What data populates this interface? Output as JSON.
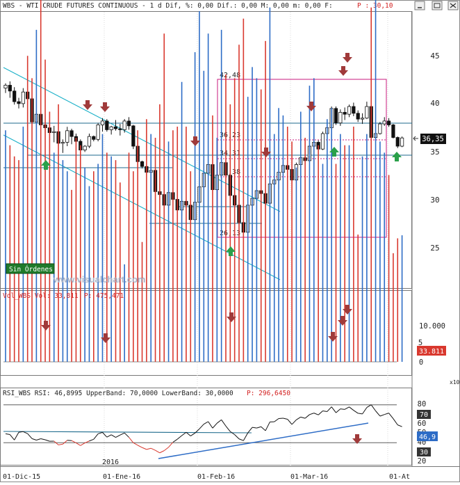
{
  "header": {
    "title_left": "WBS - WTI CRUDE FUTURES CONTINUOUS - 1 d Dif, %: 0,00 Dif.: 0,00 M: 0,00 m: 0,00 F:",
    "title_p": "P : 30,10"
  },
  "watermark": "www.visualchart.com",
  "badge_text": "Sin Órdenes",
  "price_panel": {
    "y_ticks": [
      "45",
      "40",
      "35",
      "30",
      "25"
    ],
    "last_price_label": "36,35",
    "fib_labels": [
      "42,48",
      "36,23",
      "34,31",
      "32,38",
      "26,13"
    ]
  },
  "volume_panel": {
    "title_left": "Vol_WBS Vol: 33,811",
    "title_p": "P: 475,471",
    "y_ticks": [
      "10.000",
      "5",
      "0"
    ],
    "last_label": "33.811",
    "scale_note": "x10"
  },
  "rsi_panel": {
    "title_left": "RSI_WBS RSI: 46,8995 UpperBand: 70,0000 LowerBand: 30,0000",
    "title_p": "P: 296,6450",
    "y_ticks": [
      "80",
      "60",
      "50",
      "40",
      "20"
    ],
    "upper_label": "70",
    "lower_label": "30",
    "rsi_label": "46,9"
  },
  "x_axis": {
    "labels": [
      "01-Dic-15",
      "01-Ene-16",
      "01-Feb-16",
      "01-Mar-16",
      "01-At"
    ],
    "year_label": "2016"
  },
  "colors": {
    "up": "#2d6cc6",
    "down": "#d9382e",
    "trend": "#1ab0c8",
    "hline": "#1c6a8c",
    "fib": "#c8197c",
    "arrow_down": "#a03a3a",
    "arrow_up": "#2aa04a",
    "badge_bg": "#1f7a2a"
  },
  "chart_data": [
    {
      "type": "candlestick",
      "series_name": "WBS",
      "x": [
        "2015-11-24",
        "2015-11-25",
        "2015-11-26",
        "2015-11-27",
        "2015-11-30",
        "2015-12-01",
        "2015-12-02",
        "2015-12-03",
        "2015-12-04",
        "2015-12-07",
        "2015-12-08",
        "2015-12-09",
        "2015-12-10",
        "2015-12-11",
        "2015-12-14",
        "2015-12-15",
        "2015-12-16",
        "2015-12-17",
        "2015-12-18",
        "2015-12-21",
        "2015-12-22",
        "2015-12-23",
        "2015-12-24",
        "2015-12-28",
        "2015-12-29",
        "2015-12-30",
        "2015-12-31",
        "2016-01-04",
        "2016-01-05",
        "2016-01-06",
        "2016-01-07",
        "2016-01-08",
        "2016-01-11",
        "2016-01-12",
        "2016-01-13",
        "2016-01-14",
        "2016-01-15",
        "2016-01-19",
        "2016-01-20",
        "2016-01-21",
        "2016-01-22",
        "2016-01-25",
        "2016-01-26",
        "2016-01-27",
        "2016-01-28",
        "2016-01-29",
        "2016-02-01",
        "2016-02-02",
        "2016-02-03",
        "2016-02-04",
        "2016-02-05",
        "2016-02-08",
        "2016-02-09",
        "2016-02-10",
        "2016-02-11",
        "2016-02-12",
        "2016-02-16",
        "2016-02-17",
        "2016-02-18",
        "2016-02-19",
        "2016-02-22",
        "2016-02-23",
        "2016-02-24",
        "2016-02-25",
        "2016-02-26",
        "2016-02-29",
        "2016-03-01",
        "2016-03-02",
        "2016-03-03",
        "2016-03-04",
        "2016-03-07",
        "2016-03-08",
        "2016-03-09",
        "2016-03-10",
        "2016-03-11",
        "2016-03-14",
        "2016-03-15",
        "2016-03-16",
        "2016-03-17",
        "2016-03-18",
        "2016-03-21",
        "2016-03-22",
        "2016-03-23",
        "2016-03-24",
        "2016-03-28",
        "2016-03-29",
        "2016-03-30",
        "2016-03-31",
        "2016-04-01",
        "2016-04-04",
        "2016-04-05"
      ],
      "ohlc": [
        [
          41.5,
          42.0,
          41.0,
          41.8
        ],
        [
          41.8,
          42.2,
          40.5,
          41.2
        ],
        [
          41.2,
          41.6,
          39.8,
          40.1
        ],
        [
          40.1,
          40.5,
          39.4,
          39.9
        ],
        [
          39.9,
          41.5,
          39.5,
          41.1
        ],
        [
          41.1,
          41.6,
          40.2,
          40.4
        ],
        [
          40.4,
          40.6,
          37.8,
          38.0
        ],
        [
          38.0,
          39.2,
          37.5,
          38.8
        ],
        [
          38.8,
          39.3,
          37.4,
          37.7
        ],
        [
          37.7,
          38.0,
          36.8,
          37.4
        ],
        [
          37.4,
          38.2,
          36.7,
          36.9
        ],
        [
          36.9,
          37.6,
          35.9,
          37.0
        ],
        [
          37.0,
          37.2,
          35.6,
          35.8
        ],
        [
          35.8,
          36.2,
          34.8,
          35.9
        ],
        [
          35.9,
          37.5,
          35.5,
          37.1
        ],
        [
          37.1,
          37.3,
          35.7,
          36.5
        ],
        [
          36.5,
          36.8,
          35.8,
          36.0
        ],
        [
          36.0,
          36.2,
          34.8,
          35.1
        ],
        [
          35.1,
          35.6,
          34.9,
          35.5
        ],
        [
          35.5,
          36.8,
          35.3,
          36.5
        ],
        [
          36.5,
          36.6,
          36.0,
          36.2
        ],
        [
          36.2,
          37.9,
          36.0,
          37.7
        ],
        [
          37.7,
          38.4,
          37.0,
          38.1
        ],
        [
          38.1,
          38.3,
          37.0,
          37.2
        ],
        [
          37.2,
          37.6,
          36.7,
          37.5
        ],
        [
          37.5,
          38.2,
          37.1,
          37.3
        ],
        [
          37.3,
          37.8,
          36.6,
          37.2
        ],
        [
          37.2,
          38.3,
          36.9,
          38.1
        ],
        [
          38.1,
          38.5,
          37.2,
          37.6
        ],
        [
          37.6,
          37.7,
          35.2,
          35.5
        ],
        [
          35.5,
          35.6,
          33.6,
          33.9
        ],
        [
          33.9,
          34.0,
          33.2,
          33.4
        ],
        [
          33.4,
          33.7,
          32.5,
          32.8
        ],
        [
          32.8,
          33.1,
          32.5,
          33.0
        ],
        [
          33.0,
          33.3,
          30.5,
          30.8
        ],
        [
          30.8,
          31.6,
          30.3,
          30.5
        ],
        [
          30.5,
          31.0,
          29.3,
          29.4
        ],
        [
          29.4,
          30.9,
          29.1,
          30.7
        ],
        [
          30.7,
          31.2,
          29.7,
          30.0
        ],
        [
          30.0,
          30.2,
          28.6,
          28.9
        ],
        [
          28.9,
          30.0,
          28.3,
          29.8
        ],
        [
          29.8,
          30.0,
          28.9,
          29.4
        ],
        [
          29.4,
          29.6,
          27.6,
          27.9
        ],
        [
          27.9,
          30.0,
          27.5,
          29.7
        ],
        [
          29.7,
          31.5,
          29.6,
          31.3
        ],
        [
          31.3,
          33.0,
          31.2,
          32.7
        ],
        [
          32.7,
          33.7,
          32.4,
          33.6
        ],
        [
          33.6,
          33.8,
          30.5,
          31.0
        ],
        [
          31.0,
          34.2,
          30.8,
          32.5
        ],
        [
          32.5,
          34.6,
          32.0,
          33.8
        ],
        [
          33.8,
          34.0,
          32.2,
          32.5
        ],
        [
          32.5,
          32.6,
          30.1,
          30.4
        ],
        [
          30.4,
          30.5,
          29.1,
          29.4
        ],
        [
          29.4,
          29.7,
          27.4,
          27.6
        ],
        [
          27.6,
          27.8,
          26.1,
          26.6
        ],
        [
          26.6,
          29.6,
          26.5,
          29.4
        ],
        [
          29.4,
          30.6,
          28.9,
          30.1
        ],
        [
          30.1,
          31.0,
          29.8,
          30.9
        ],
        [
          30.9,
          31.2,
          30.2,
          30.6
        ],
        [
          30.6,
          31.0,
          29.4,
          29.6
        ],
        [
          29.6,
          31.8,
          29.5,
          31.6
        ],
        [
          31.6,
          32.4,
          31.4,
          32.0
        ],
        [
          32.0,
          33.1,
          31.1,
          32.8
        ],
        [
          32.8,
          33.9,
          32.5,
          33.5
        ],
        [
          33.5,
          33.8,
          32.8,
          33.1
        ],
        [
          33.1,
          33.3,
          31.7,
          32.0
        ],
        [
          32.0,
          33.8,
          31.9,
          33.6
        ],
        [
          33.6,
          34.6,
          33.2,
          34.3
        ],
        [
          34.3,
          34.7,
          33.6,
          34.0
        ],
        [
          34.0,
          35.7,
          33.8,
          35.5
        ],
        [
          35.5,
          36.3,
          35.1,
          35.9
        ],
        [
          35.9,
          36.1,
          35.0,
          35.2
        ],
        [
          35.2,
          37.0,
          35.1,
          36.8
        ],
        [
          36.8,
          37.6,
          36.3,
          37.4
        ],
        [
          37.4,
          39.6,
          37.2,
          39.4
        ],
        [
          39.4,
          39.6,
          37.7,
          37.9
        ],
        [
          37.9,
          39.3,
          37.6,
          39.0
        ],
        [
          39.0,
          39.5,
          38.2,
          38.8
        ],
        [
          38.8,
          39.8,
          38.5,
          39.6
        ],
        [
          39.6,
          40.0,
          38.6,
          38.9
        ],
        [
          38.9,
          39.2,
          38.0,
          38.3
        ],
        [
          38.3,
          38.9,
          37.8,
          38.4
        ],
        [
          38.4,
          40.1,
          38.3,
          39.6
        ],
        [
          39.6,
          39.7,
          36.2,
          36.4
        ],
        [
          36.4,
          37.0,
          35.9,
          36.8
        ],
        [
          36.8,
          38.0,
          36.7,
          37.8
        ],
        [
          37.8,
          38.5,
          37.6,
          38.1
        ],
        [
          38.1,
          38.4,
          37.5,
          37.7
        ],
        [
          37.7,
          37.8,
          36.3,
          36.4
        ],
        [
          36.4,
          36.5,
          35.3,
          35.5
        ],
        [
          35.5,
          36.5,
          35.4,
          36.35
        ]
      ]
    },
    {
      "type": "bar",
      "series_name": "Vol_WBS",
      "y_unit_multiplier": "x10",
      "values": [
        6200,
        5800,
        5500,
        5400,
        6300,
        8200,
        7600,
        8900,
        10300,
        8100,
        6700,
        5600,
        6900,
        5400,
        5100,
        4600,
        6000,
        5800,
        5200,
        4700,
        5100,
        5300,
        6100,
        5600,
        5500,
        5400,
        4800,
        2600,
        5600,
        5100,
        6200,
        3200,
        6500,
        6100,
        6000,
        6900,
        8800,
        5900,
        6200,
        6300,
        7500,
        6300,
        5100,
        8300,
        9400,
        7800,
        8800,
        6600,
        6000,
        8900,
        7700,
        6900,
        7600,
        8500,
        9200,
        7100,
        7900,
        7600,
        7300,
        8600,
        9500,
        6100,
        6800,
        6600,
        6300,
        5900,
        5200,
        6700,
        6000,
        7400,
        7600,
        5800,
        5300,
        6500,
        6800,
        5300,
        6100,
        5800,
        5800,
        6300,
        3400,
        5500,
        6100,
        9500,
        9700,
        5900,
        5600,
        5000,
        2900,
        3300,
        3381
      ]
    },
    {
      "type": "line",
      "series_name": "RSI_WBS",
      "upper_band": 70,
      "lower_band": 30,
      "values": [
        39.4,
        38.6,
        32.9,
        41.0,
        41.7,
        39.6,
        34.3,
        32.7,
        34.2,
        33.1,
        31.5,
        31.6,
        27.7,
        28.5,
        32.5,
        32.2,
        29.8,
        27.0,
        29.7,
        31.8,
        33.6,
        39.4,
        40.9,
        35.9,
        38.4,
        35.6,
        38.1,
        40.3,
        35.7,
        29.9,
        27.3,
        24.9,
        22.9,
        24.1,
        21.9,
        19.3,
        21.6,
        25.2,
        30.5,
        33.7,
        37.5,
        41.0,
        37.1,
        40.2,
        44.6,
        49.6,
        52.3,
        45.4,
        50.6,
        54.2,
        47.6,
        41.8,
        38.5,
        34.0,
        32.2,
        40.4,
        46.2,
        45.5,
        46.9,
        42.7,
        51.9,
        52.1,
        55.5,
        55.9,
        54.8,
        49.3,
        54.2,
        57.1,
        55.8,
        59.7,
        61.3,
        59.4,
        63.6,
        62.9,
        67.9,
        61.7,
        65.7,
        65.2,
        67.8,
        64.2,
        61.1,
        60.4,
        67.2,
        70.1,
        63.6,
        58.1,
        59.8,
        61.3,
        55.4,
        48.8,
        46.9
      ]
    }
  ]
}
